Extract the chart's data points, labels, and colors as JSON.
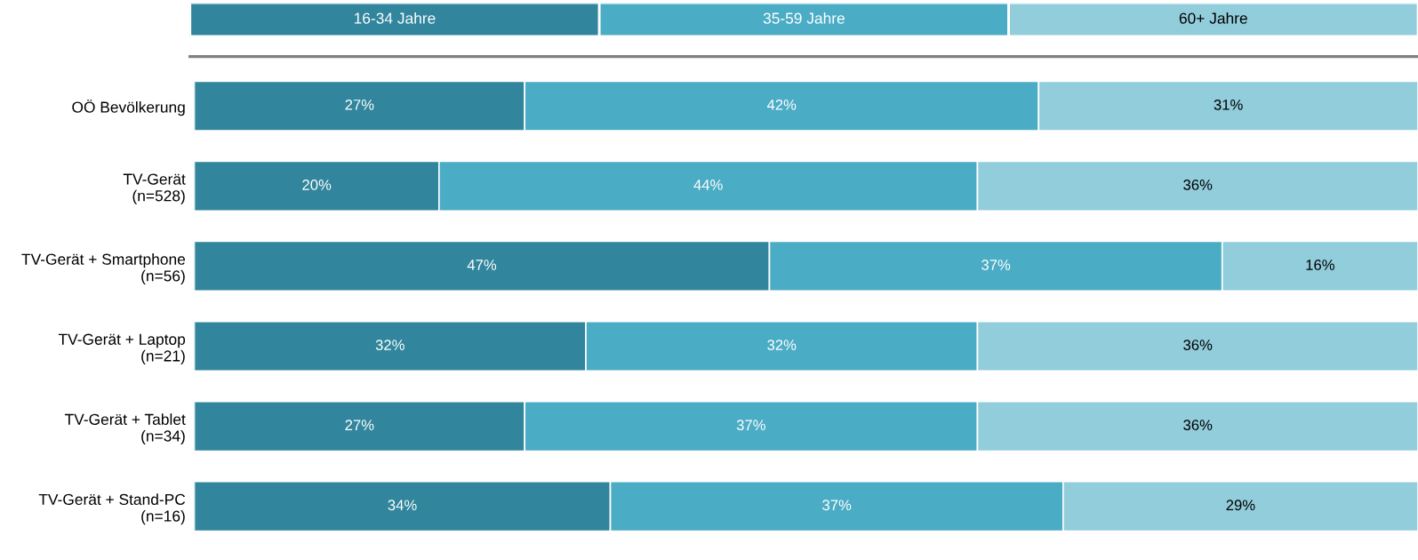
{
  "chart_data": {
    "type": "bar",
    "orientation": "horizontal",
    "stacked": true,
    "legend": "top",
    "grid": false,
    "tick_labels": "y",
    "categories": [
      "OÖ Bevölkerung",
      "TV-Gerät\n(n=528)",
      "TV-Gerät + Smartphone\n(n=56)",
      "TV-Gerät + Laptop\n(n=21)",
      "TV-Gerät + Tablet\n(n=34)",
      "TV-Gerät + Stand-PC\n(n=16)"
    ],
    "series": [
      {
        "name": "16-34 Jahre",
        "color": "#31859c",
        "values": [
          27,
          20,
          47,
          32,
          27,
          34
        ],
        "value_labels": [
          "27%",
          "20%",
          "47%",
          "32%",
          "27%",
          "34%"
        ]
      },
      {
        "name": "35-59 Jahre",
        "color": "#4bacc6",
        "values": [
          42,
          44,
          37,
          32,
          37,
          37
        ],
        "value_labels": [
          "42%",
          "44%",
          "37%",
          "32%",
          "37%",
          "37%"
        ]
      },
      {
        "name": "60+ Jahre",
        "color": "#92cddc",
        "values": [
          31,
          36,
          16,
          36,
          36,
          29
        ],
        "value_labels": [
          "31%",
          "36%",
          "16%",
          "36%",
          "36%",
          "29%"
        ]
      }
    ]
  }
}
